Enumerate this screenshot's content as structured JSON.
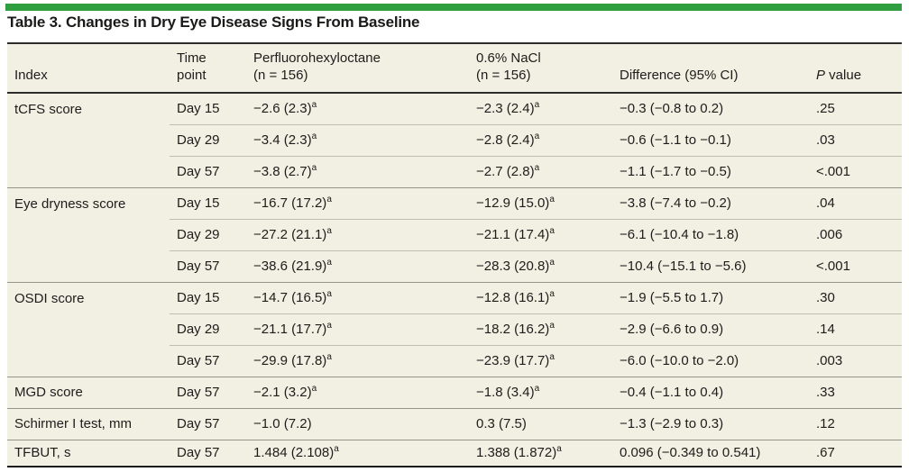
{
  "title": "Table 3. Changes in Dry Eye Disease Signs From Baseline",
  "accent_color": "#2f9e41",
  "table": {
    "headers": {
      "index": "Index",
      "time_point": "Time\npoint",
      "pfho": "Perfluorohexyloctane\n(n = 156)",
      "nacl": "0.6% NaCl\n(n = 156)",
      "difference": "Difference (95% CI)",
      "p_italic": "P",
      "p_rest": " value"
    },
    "rows": [
      {
        "index": "tCFS score",
        "group_start": true,
        "time_point": "Day 15",
        "pfho": "−2.6 (2.3)",
        "pfho_sup": "a",
        "nacl": "−2.3 (2.4)",
        "nacl_sup": "a",
        "difference": "−0.3 (−0.8 to 0.2)",
        "p_value": ".25"
      },
      {
        "index": "",
        "group_start": false,
        "time_point": "Day 29",
        "pfho": "−3.4 (2.3)",
        "pfho_sup": "a",
        "nacl": "−2.8 (2.4)",
        "nacl_sup": "a",
        "difference": "−0.6 (−1.1 to −0.1)",
        "p_value": ".03"
      },
      {
        "index": "",
        "group_start": false,
        "time_point": "Day 57",
        "pfho": "−3.8 (2.7)",
        "pfho_sup": "a",
        "nacl": "−2.7 (2.8)",
        "nacl_sup": "a",
        "difference": "−1.1 (−1.7 to −0.5)",
        "p_value": "<.001"
      },
      {
        "index": "Eye dryness score",
        "group_start": true,
        "time_point": "Day 15",
        "pfho": "−16.7 (17.2)",
        "pfho_sup": "a",
        "nacl": "−12.9 (15.0)",
        "nacl_sup": "a",
        "difference": "−3.8 (−7.4 to −0.2)",
        "p_value": ".04"
      },
      {
        "index": "",
        "group_start": false,
        "time_point": "Day 29",
        "pfho": "−27.2 (21.1)",
        "pfho_sup": "a",
        "nacl": "−21.1 (17.4)",
        "nacl_sup": "a",
        "difference": "−6.1 (−10.4 to −1.8)",
        "p_value": ".006"
      },
      {
        "index": "",
        "group_start": false,
        "time_point": "Day 57",
        "pfho": "−38.6 (21.9)",
        "pfho_sup": "a",
        "nacl": "−28.3 (20.8)",
        "nacl_sup": "a",
        "difference": "−10.4 (−15.1 to −5.6)",
        "p_value": "<.001"
      },
      {
        "index": "OSDI score",
        "group_start": true,
        "time_point": "Day 15",
        "pfho": "−14.7 (16.5)",
        "pfho_sup": "a",
        "nacl": "−12.8 (16.1)",
        "nacl_sup": "a",
        "difference": "−1.9 (−5.5 to 1.7)",
        "p_value": ".30"
      },
      {
        "index": "",
        "group_start": false,
        "time_point": "Day 29",
        "pfho": "−21.1 (17.7)",
        "pfho_sup": "a",
        "nacl": "−18.2 (16.2)",
        "nacl_sup": "a",
        "difference": "−2.9 (−6.6 to 0.9)",
        "p_value": ".14"
      },
      {
        "index": "",
        "group_start": false,
        "time_point": "Day 57",
        "pfho": "−29.9 (17.8)",
        "pfho_sup": "a",
        "nacl": "−23.9 (17.7)",
        "nacl_sup": "a",
        "difference": "−6.0 (−10.0 to −2.0)",
        "p_value": ".003"
      },
      {
        "index": "MGD score",
        "group_start": true,
        "time_point": "Day 57",
        "pfho": "−2.1 (3.2)",
        "pfho_sup": "a",
        "nacl": "−1.8 (3.4)",
        "nacl_sup": "a",
        "difference": "−0.4 (−1.1 to 0.4)",
        "p_value": ".33"
      },
      {
        "index": "Schirmer I test, mm",
        "group_start": true,
        "time_point": "Day 57",
        "pfho": "−1.0 (7.2)",
        "pfho_sup": "",
        "nacl": "0.3 (7.5)",
        "nacl_sup": "",
        "difference": "−1.3 (−2.9 to 0.3)",
        "p_value": ".12"
      },
      {
        "index": "TFBUT, s",
        "group_start": true,
        "time_point": "Day 57",
        "pfho": "1.484 (2.108)",
        "pfho_sup": "a",
        "nacl": "1.388 (1.872)",
        "nacl_sup": "a",
        "difference": "0.096 (−0.349 to 0.541)",
        "p_value": ".67"
      }
    ]
  }
}
